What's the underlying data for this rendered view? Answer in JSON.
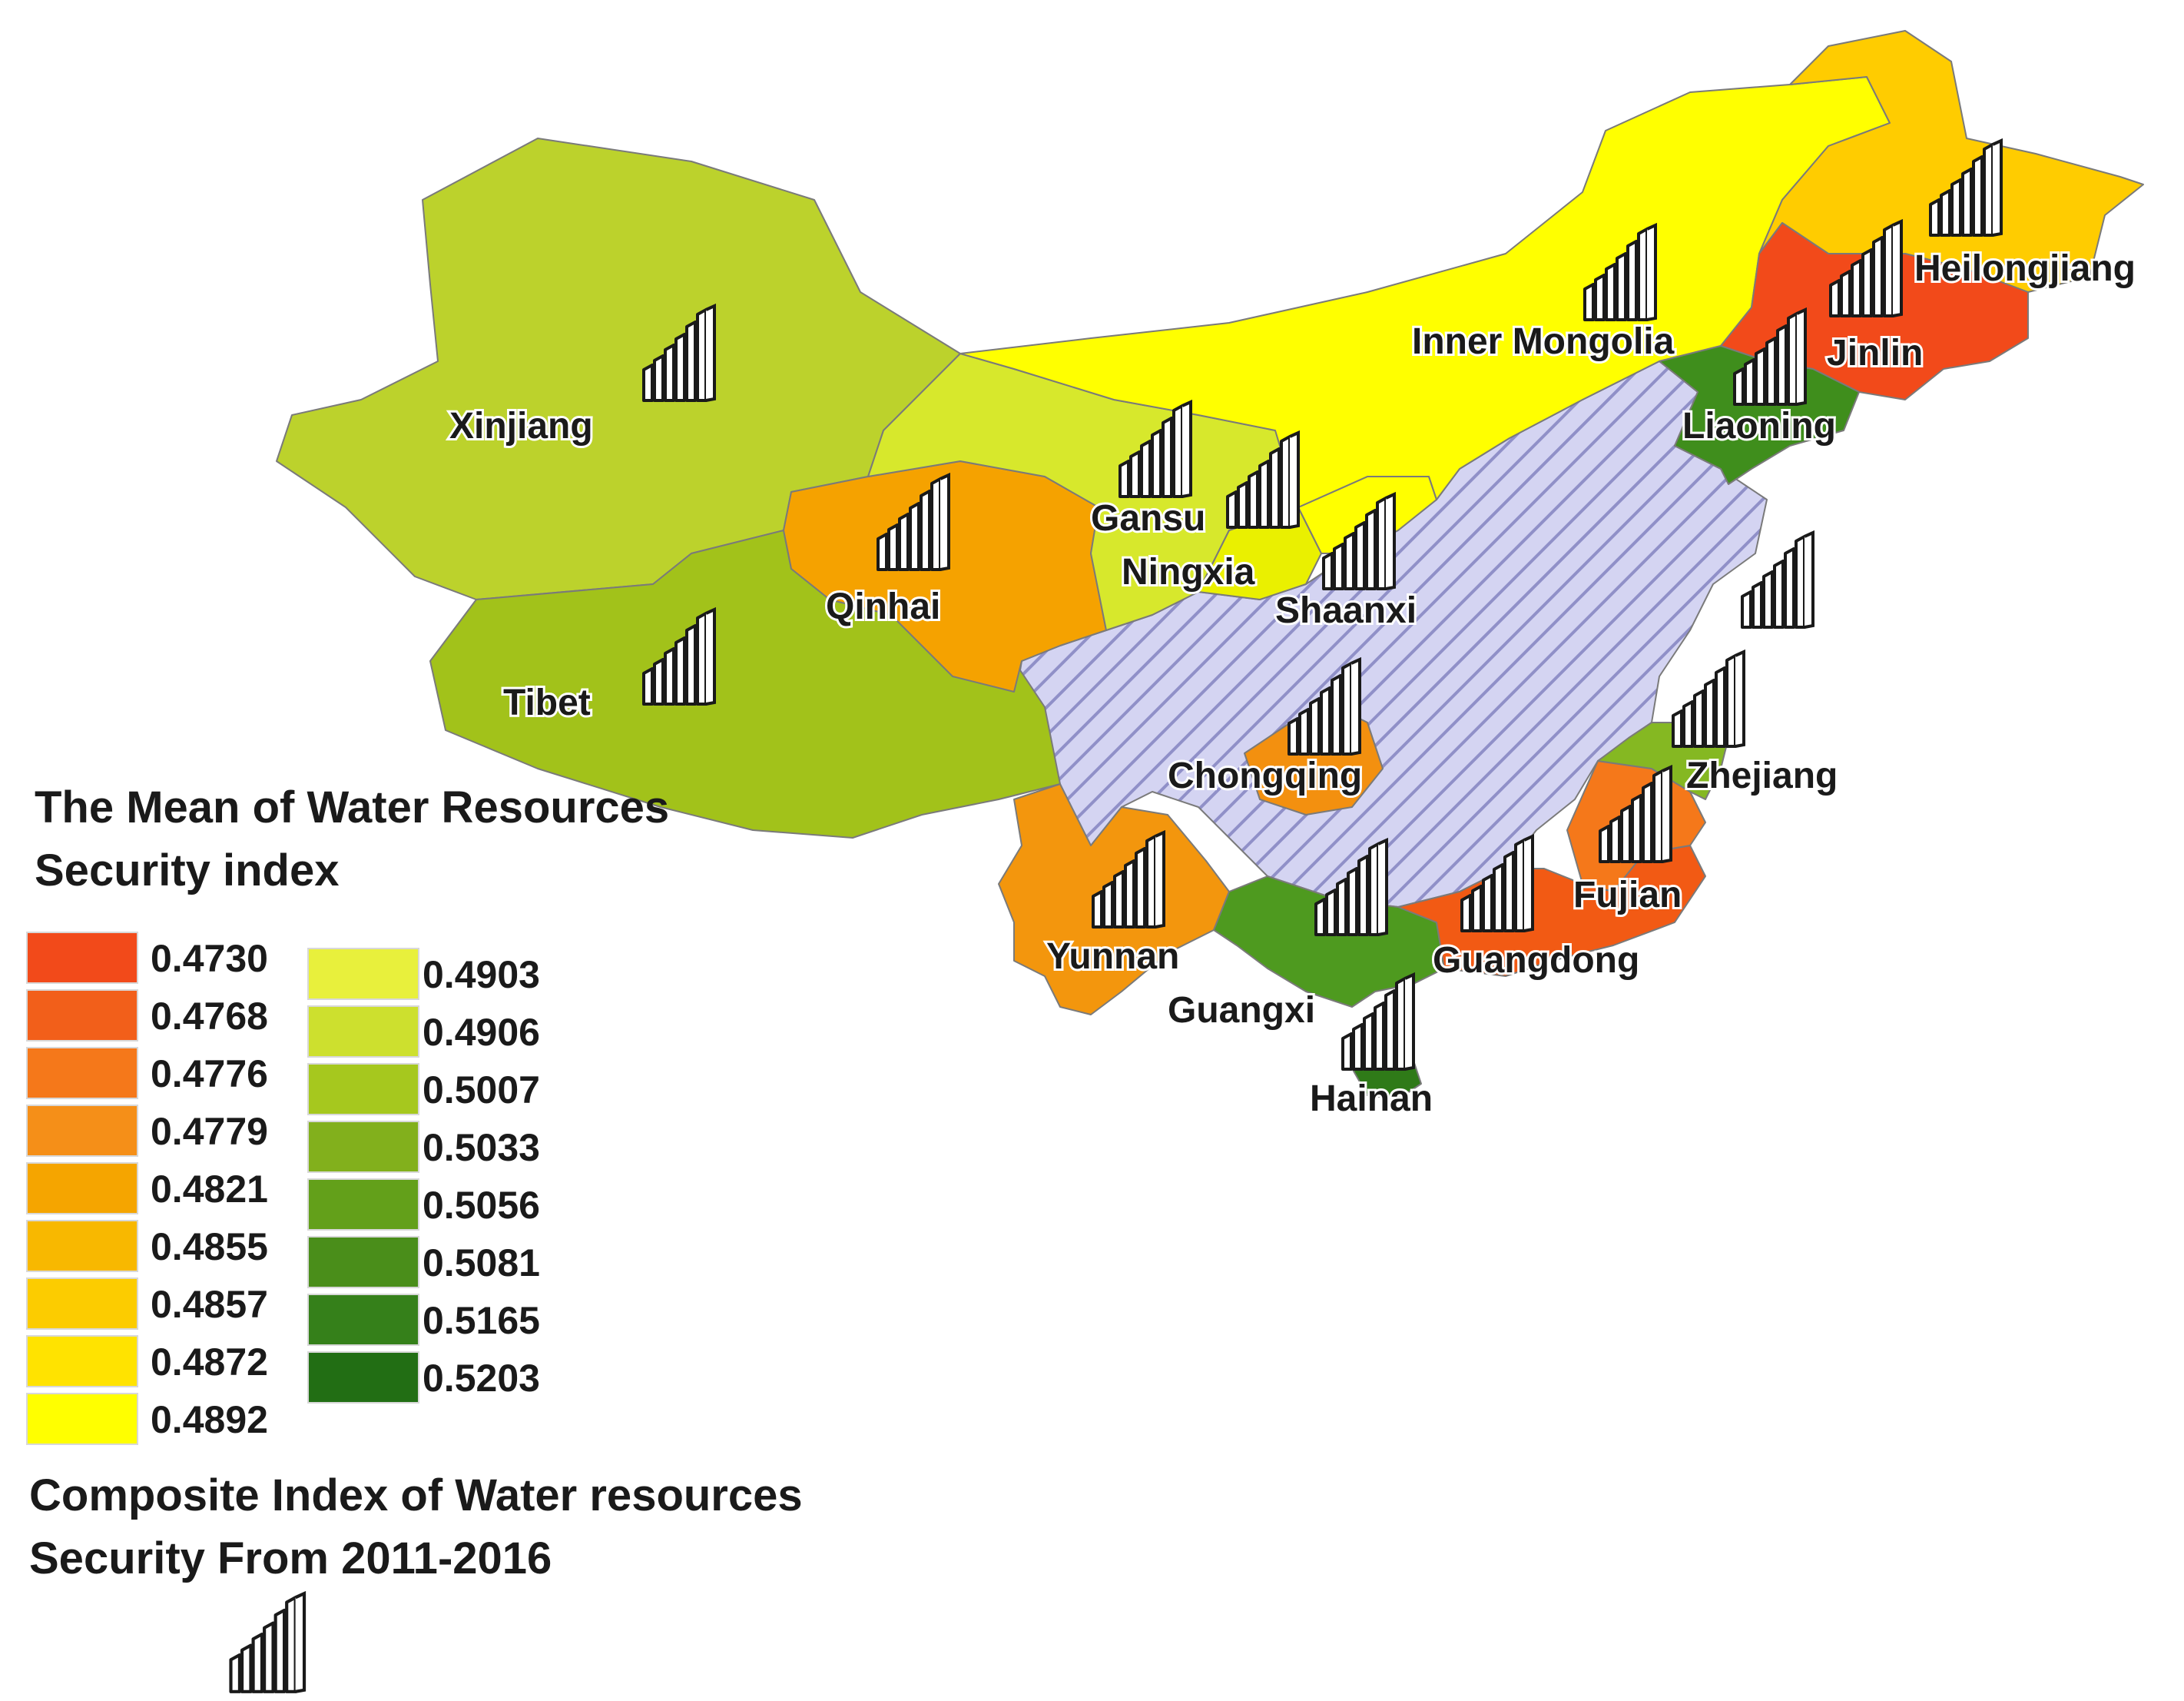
{
  "colors": {
    "hatched_fill": "#d4d4f2",
    "hatch_stroke": "#9090c8",
    "boundary": "#7a7a7a"
  },
  "regions": [
    {
      "name": "Xinjiang",
      "color": "#bcd22c",
      "label": "Xinjiang"
    },
    {
      "name": "Tibet",
      "color": "#a2c21a",
      "label": "Tibet"
    },
    {
      "name": "Qinhai",
      "color": "#f5a200",
      "label": "Qinhai"
    },
    {
      "name": "Gansu",
      "color": "#d7e82c",
      "label": "Gansu"
    },
    {
      "name": "Ningxia",
      "color": "#eaf000",
      "label": "Ningxia"
    },
    {
      "name": "Shaanxi",
      "color": "#ffff00",
      "label": "Shaanxi"
    },
    {
      "name": "Inner Mongolia",
      "color": "#ffff00",
      "label": "Inner Mongolia"
    },
    {
      "name": "Heilongjiang",
      "color": "#ffcc00",
      "label": "Heilongjiang"
    },
    {
      "name": "Jinlin",
      "color": "#f24a1a",
      "label": "Jinlin"
    },
    {
      "name": "Liaoning",
      "color": "#3f8e1c",
      "label": "Liaoning"
    },
    {
      "name": "Chongqing",
      "color": "#f3900f",
      "label": "Chongqing"
    },
    {
      "name": "Yunnan",
      "color": "#f3960d",
      "label": "Yunnan"
    },
    {
      "name": "Guangxi",
      "color": "#4e9a1f",
      "label": "Guangxi"
    },
    {
      "name": "Guangdong",
      "color": "#f25a14",
      "label": "Guangdong"
    },
    {
      "name": "Fujian",
      "color": "#f5781a",
      "label": "Fujian"
    },
    {
      "name": "Zhejiang",
      "color": "#85b822",
      "label": "Zhejiang"
    },
    {
      "name": "Hainan",
      "color": "#2f7a18",
      "label": "Hainan"
    }
  ],
  "legend": {
    "title": "The Mean of Water Resources Security index",
    "left_column": [
      {
        "value": "0.4730",
        "color": "#f24a1a"
      },
      {
        "value": "0.4768",
        "color": "#f25f1a"
      },
      {
        "value": "0.4776",
        "color": "#f5781a"
      },
      {
        "value": "0.4779",
        "color": "#f58f18"
      },
      {
        "value": "0.4821",
        "color": "#f5a500"
      },
      {
        "value": "0.4855",
        "color": "#f8b800"
      },
      {
        "value": "0.4857",
        "color": "#fccc00"
      },
      {
        "value": "0.4872",
        "color": "#ffe300"
      },
      {
        "value": "0.4892",
        "color": "#ffff00"
      }
    ],
    "right_column": [
      {
        "value": "0.4903",
        "color": "#e8f03c"
      },
      {
        "value": "0.4906",
        "color": "#cde02e"
      },
      {
        "value": "0.5007",
        "color": "#a6c81e"
      },
      {
        "value": "0.5033",
        "color": "#82b01c"
      },
      {
        "value": "0.5056",
        "color": "#63a01a"
      },
      {
        "value": "0.5081",
        "color": "#4a8e1a"
      },
      {
        "value": "0.5165",
        "color": "#35801a"
      },
      {
        "value": "0.5203",
        "color": "#226e14"
      }
    ]
  },
  "composite_legend": {
    "title": "Composite Index of Water resources Security From 2011-2016",
    "icon": "bar-chart-icon"
  },
  "icons": {
    "glyph": "bar-chart-icon"
  }
}
